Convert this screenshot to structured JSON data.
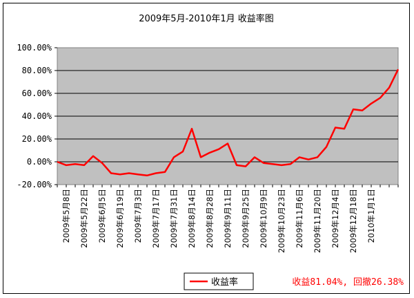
{
  "chart_data": {
    "type": "line",
    "title": "2009年5月-2010年1月 收益率图",
    "xlabel": "",
    "ylabel": "",
    "ylim": [
      -20,
      100
    ],
    "ytick_labels": [
      "100.00%",
      "80.00%",
      "60.00%",
      "40.00%",
      "20.00%",
      "0.00%",
      "-20.00%"
    ],
    "yticks": [
      100,
      80,
      60,
      40,
      20,
      0,
      -20
    ],
    "grid": "horizontal",
    "plot_background": "#c0c0c0",
    "x_tick_labels": [
      "2009年5月8日",
      "2009年5月22日",
      "2009年6月5日",
      "2009年6月19日",
      "2009年7月3日",
      "2009年7月17日",
      "2009年7月31日",
      "2009年8月14日",
      "2009年8月28日",
      "2009年9月11日",
      "2009年9月25日",
      "2009年10月9日",
      "2009年10月23日",
      "2009年11月6日",
      "2009年11月20日",
      "2009年12月4日",
      "2009年12月18日",
      "2010年1月1日"
    ],
    "series": [
      {
        "name": "收益率",
        "color": "#ff0000",
        "values": [
          0,
          -3,
          -2,
          -3,
          5,
          -1,
          -10,
          -11,
          -10,
          -11,
          -12,
          -10,
          -9,
          4,
          9,
          29,
          4,
          8,
          11,
          16,
          -3,
          -4,
          4,
          -1,
          -2,
          -3,
          -2,
          4,
          2,
          4,
          13,
          30,
          29,
          46,
          45,
          51,
          56,
          65,
          81
        ]
      }
    ],
    "legend": {
      "position": "bottom-center",
      "entries": [
        "收益率"
      ]
    },
    "annotation": {
      "text": "收益81.04%, 回撤26.38%",
      "color": "#ff0000"
    }
  }
}
